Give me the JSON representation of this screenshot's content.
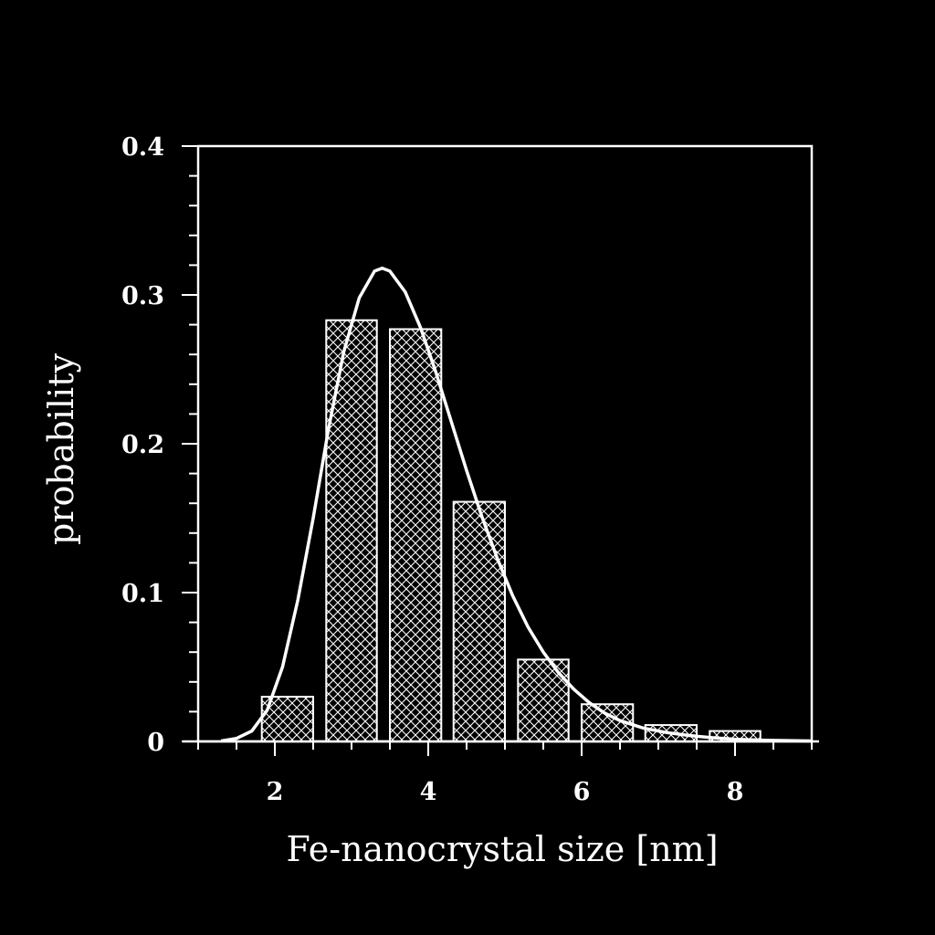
{
  "chart_data": {
    "type": "bar",
    "title": "",
    "xlabel": "Fe-nanocrystal size [nm]",
    "ylabel": "probability",
    "xlim": [
      1,
      9
    ],
    "ylim": [
      0,
      0.4
    ],
    "x_ticks": [
      2,
      4,
      6,
      8
    ],
    "y_ticks": [
      0,
      0.1,
      0.2,
      0.3,
      0.4
    ],
    "x_tick_labels": [
      "2",
      "4",
      "6",
      "8"
    ],
    "y_tick_labels": [
      "0",
      "0.1",
      "0.2",
      "0.3",
      "0.4"
    ],
    "bars": {
      "x_left": [
        1.83,
        2.67,
        3.5,
        4.33,
        5.17,
        6.0,
        6.83,
        7.67
      ],
      "x_right": [
        2.5,
        3.33,
        4.17,
        5.0,
        5.83,
        6.67,
        7.5,
        8.33
      ],
      "values": [
        0.03,
        0.283,
        0.277,
        0.161,
        0.055,
        0.025,
        0.011,
        0.007
      ]
    },
    "fit_curve": {
      "type": "lognormal",
      "peak_x": 3.4,
      "peak_y": 0.318,
      "sigma_log": 0.24,
      "x": [
        1.3,
        1.5,
        1.7,
        1.9,
        2.1,
        2.3,
        2.5,
        2.7,
        2.9,
        3.1,
        3.3,
        3.4,
        3.5,
        3.7,
        3.9,
        4.1,
        4.3,
        4.5,
        4.7,
        4.9,
        5.1,
        5.3,
        5.5,
        5.7,
        5.9,
        6.1,
        6.3,
        6.5,
        6.8,
        7.1,
        7.4,
        7.7,
        8.0,
        8.4,
        8.8,
        9.0
      ],
      "y": [
        0.0003,
        0.002,
        0.007,
        0.021,
        0.05,
        0.095,
        0.15,
        0.21,
        0.262,
        0.298,
        0.316,
        0.318,
        0.316,
        0.302,
        0.278,
        0.248,
        0.215,
        0.182,
        0.151,
        0.123,
        0.098,
        0.077,
        0.06,
        0.046,
        0.035,
        0.026,
        0.019,
        0.014,
        0.009,
        0.006,
        0.004,
        0.0025,
        0.0015,
        0.0008,
        0.0004,
        0.0003
      ]
    },
    "grid": false,
    "legend": "none",
    "colors": {
      "background": "#000000",
      "foreground": "#ffffff",
      "bar_fill": "crosshatch"
    }
  }
}
